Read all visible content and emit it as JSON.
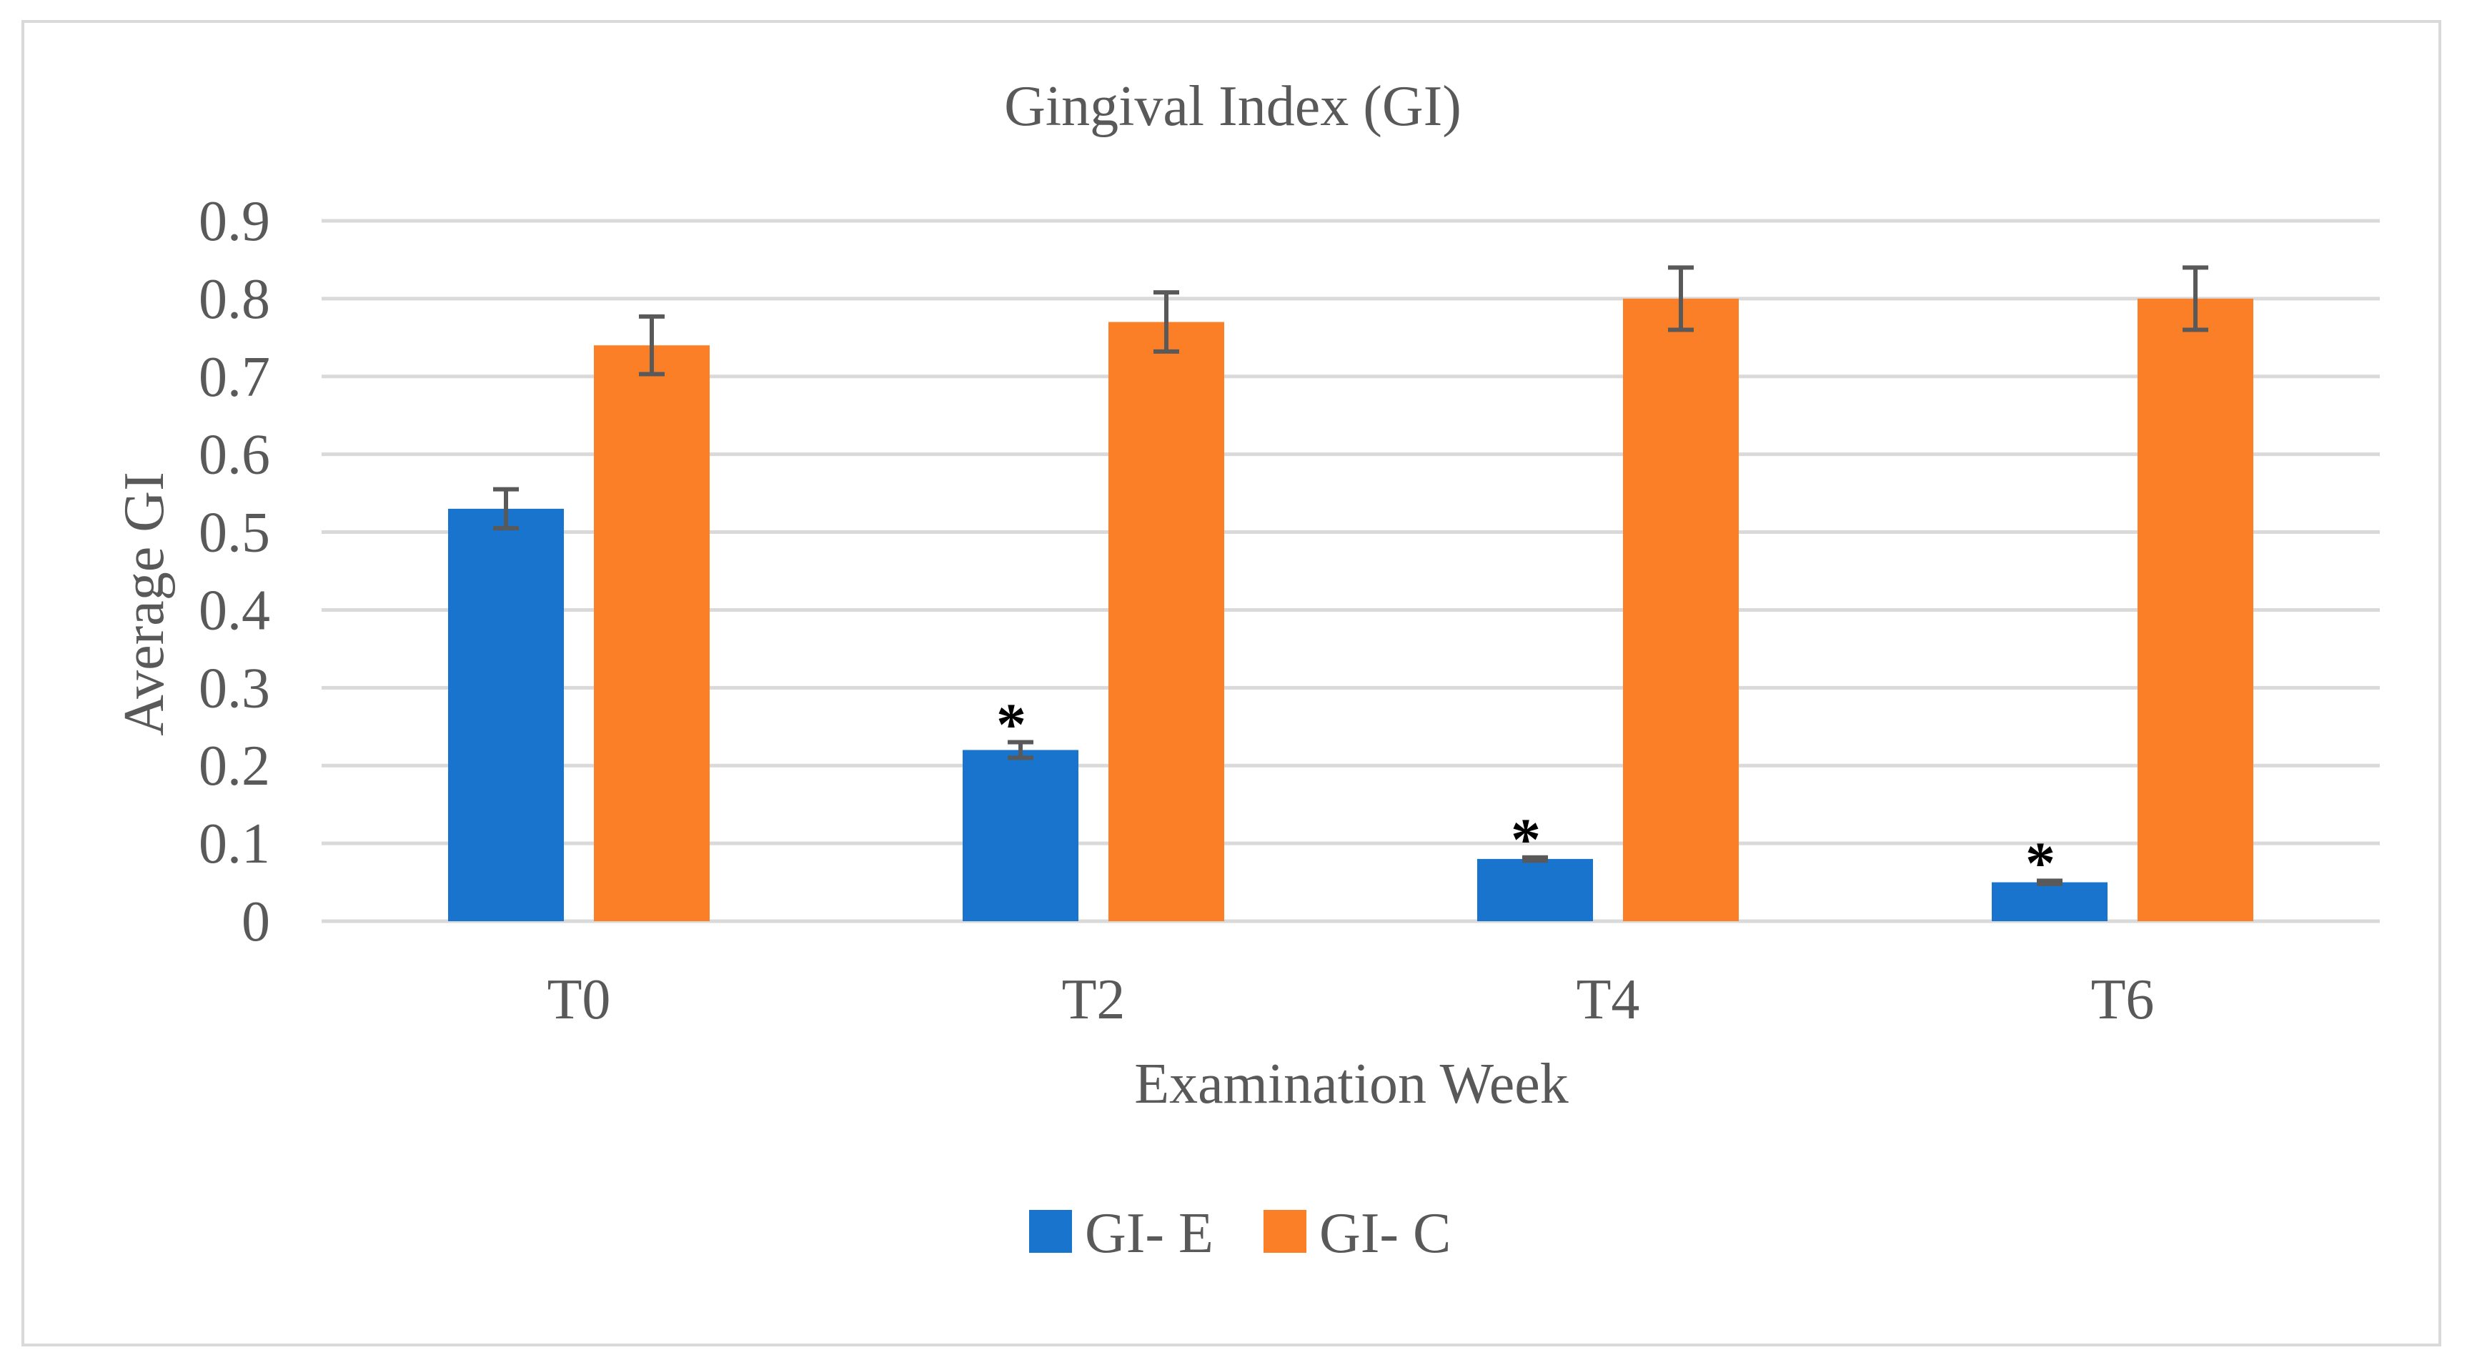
{
  "chart_data": {
    "type": "bar",
    "title": "Gingival Index (GI)",
    "xlabel": "Examination Week",
    "ylabel": "Average GI",
    "categories": [
      "T0",
      "T2",
      "T4",
      "T6"
    ],
    "ylim": [
      0,
      0.9
    ],
    "yticks": [
      "0",
      "0.1",
      "0.2",
      "0.3",
      "0.4",
      "0.5",
      "0.6",
      "0.7",
      "0.8",
      "0.9"
    ],
    "grid": true,
    "legend_position": "bottom",
    "series": [
      {
        "name": "GI- E",
        "color": "#1874cd",
        "values": [
          0.53,
          0.22,
          0.08,
          0.05
        ],
        "error": [
          0.025,
          0.01,
          0.002,
          0.002
        ],
        "annotations": [
          "",
          "*",
          "*",
          "*"
        ]
      },
      {
        "name": "GI- C",
        "color": "#fb7f26",
        "values": [
          0.74,
          0.77,
          0.8,
          0.8
        ],
        "error": [
          0.037,
          0.038,
          0.04,
          0.04
        ],
        "annotations": [
          "",
          "",
          "",
          ""
        ]
      }
    ],
    "colors": {
      "gridline": "#d9d9d9",
      "text": "#595959",
      "error_bar": "#595959",
      "annotation": "#000000"
    }
  }
}
